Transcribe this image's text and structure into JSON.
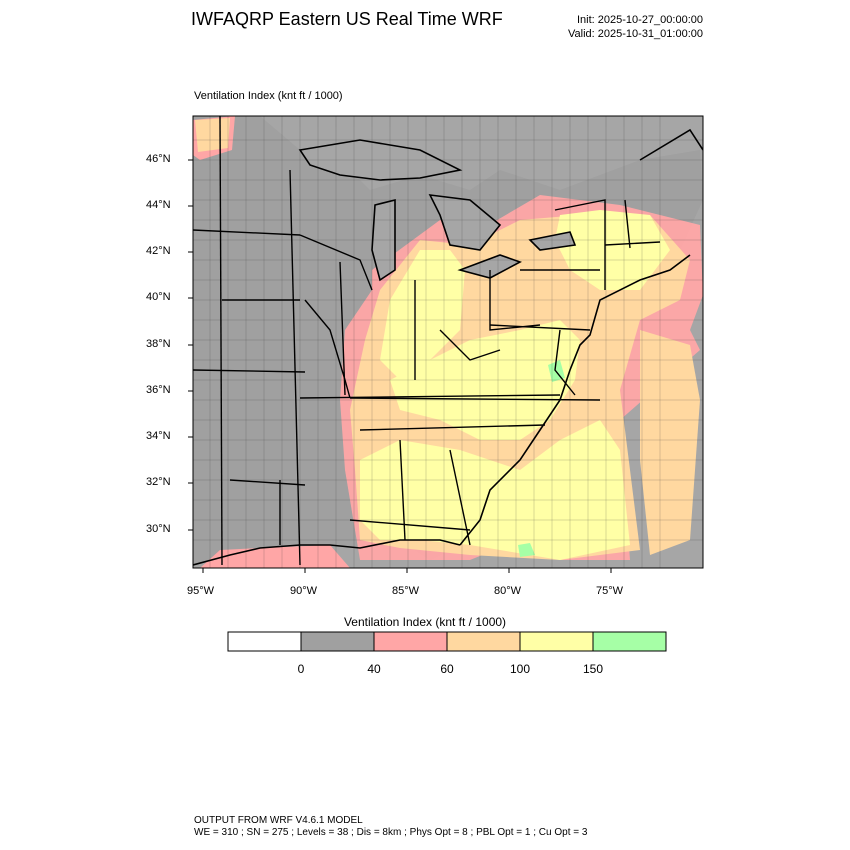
{
  "header": {
    "title": "IWFAQRP Eastern US Real Time WRF",
    "init": "Init: 2025-10-27_00:00:00",
    "valid": "Valid: 2025-10-31_01:00:00"
  },
  "map": {
    "caption": "Ventilation Index   (knt ft / 1000)",
    "lat_labels": [
      "46°N",
      "44°N",
      "42°N",
      "40°N",
      "38°N",
      "36°N",
      "34°N",
      "32°N",
      "30°N"
    ],
    "lon_labels": [
      "95°W",
      "90°W",
      "85°W",
      "80°W",
      "75°W"
    ],
    "colors": {
      "water": "#a6a6a6",
      "land_low": "#a0a0a0",
      "c40": "#ffa6a6",
      "c60": "#ffd8a0",
      "c100": "#ffffa6",
      "c150": "#a6ffa6"
    }
  },
  "colorbar": {
    "title": "Ventilation Index  (knt ft / 1000)",
    "ticks": [
      "0",
      "40",
      "60",
      "100",
      "150"
    ],
    "bins": [
      {
        "color": "#ffffff"
      },
      {
        "color": "#a0a0a0"
      },
      {
        "color": "#ffa6a6"
      },
      {
        "color": "#ffd8a0"
      },
      {
        "color": "#ffffa6"
      },
      {
        "color": "#a6ffa6"
      }
    ]
  },
  "footer": {
    "line1": "OUTPUT FROM WRF V4.6.1 MODEL",
    "line2": "WE = 310 ; SN = 275 ; Levels = 38 ; Dis = 8km ; Phys Opt = 8 ; PBL Opt = 1 ; Cu Opt = 3"
  }
}
